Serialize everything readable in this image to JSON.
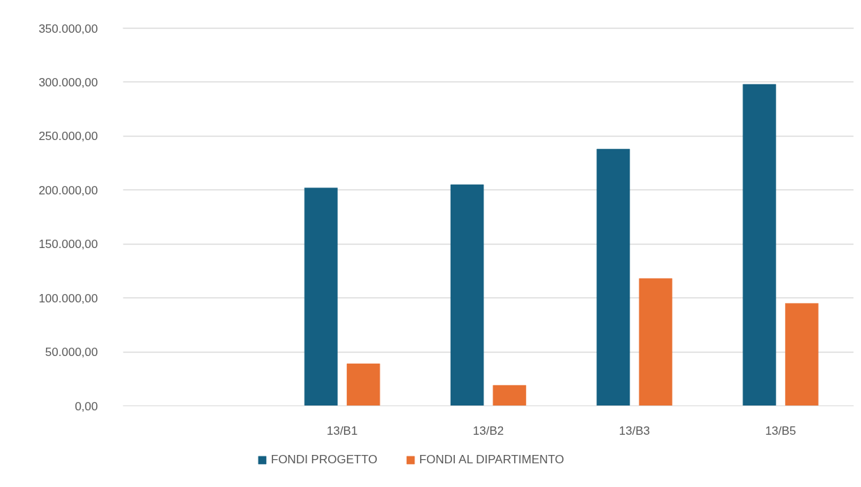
{
  "chart_data": {
    "type": "bar",
    "categories": [
      null,
      "13/B1",
      "13/B2",
      "13/B3",
      "13/B5"
    ],
    "series": [
      {
        "name": "FONDI PROGETTO",
        "color": "#156082",
        "values": [
          null,
          202000,
          205000,
          238000,
          298000
        ]
      },
      {
        "name": "FONDI AL DIPARTIMENTO",
        "color": "#e97132",
        "values": [
          null,
          39000,
          19000,
          118000,
          95000
        ]
      }
    ],
    "ylim": [
      0,
      350000
    ],
    "yticks": [
      {
        "value": 0,
        "label": "0,00"
      },
      {
        "value": 50000,
        "label": "50.000,00"
      },
      {
        "value": 100000,
        "label": "100.000,00"
      },
      {
        "value": 150000,
        "label": "150.000,00"
      },
      {
        "value": 200000,
        "label": "200.000,00"
      },
      {
        "value": 250000,
        "label": "250.000,00"
      },
      {
        "value": 300000,
        "label": "300.000,00"
      },
      {
        "value": 350000,
        "label": "350.000,00"
      }
    ],
    "grid": "y",
    "legend": "bottom"
  }
}
